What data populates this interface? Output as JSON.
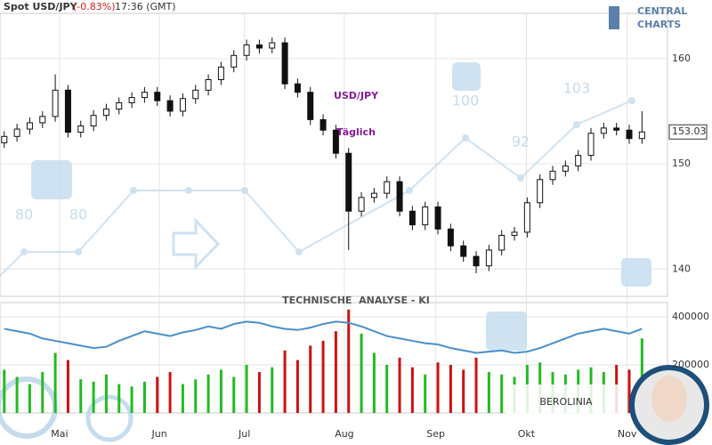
{
  "header": {
    "symbol": "Spot USD/JPY",
    "change": "(-0.83%)",
    "time": "17:36 (GMT)"
  },
  "logo": {
    "line1": "CENTRAL",
    "line2": "CHARTS"
  },
  "overlay": {
    "title": "USD/JPY",
    "subtitle": "Täglich",
    "banner": "TECHNISCHE  ANALYSE - KI",
    "brand": "BEROLINIA",
    "scores": [
      "80",
      "80",
      "100",
      "92",
      "103"
    ]
  },
  "chart_data": [
    {
      "type": "candlestick",
      "x": [
        0,
        3,
        6,
        9,
        12,
        15,
        18,
        21,
        24,
        27,
        30,
        33,
        36,
        39,
        42,
        45,
        48,
        51,
        54,
        57,
        60,
        63,
        66,
        69,
        72,
        75,
        78,
        81,
        84,
        87,
        90,
        93,
        96,
        99,
        102,
        105,
        108,
        111,
        114,
        117,
        120,
        123,
        126,
        129,
        132,
        135,
        138,
        141,
        144,
        147,
        150
      ],
      "open": [
        152.0,
        152.6,
        153.3,
        153.9,
        154.5,
        157.0,
        153.0,
        153.6,
        154.6,
        155.2,
        155.8,
        156.3,
        156.8,
        156.0,
        155.0,
        156.2,
        157.0,
        158.0,
        159.2,
        160.3,
        161.3,
        161.0,
        161.5,
        157.6,
        156.8,
        154.2,
        153.2,
        151.0,
        145.5,
        146.8,
        147.2,
        148.3,
        145.5,
        144.2,
        145.9,
        143.8,
        142.2,
        141.2,
        140.3,
        141.8,
        143.2,
        143.5,
        146.3,
        148.5,
        149.3,
        149.8,
        150.8,
        152.9,
        153.4,
        153.2,
        152.4
      ],
      "high": [
        153.1,
        153.8,
        154.4,
        155.0,
        158.5,
        157.5,
        154.1,
        155.1,
        155.7,
        156.3,
        156.8,
        157.3,
        157.3,
        156.5,
        156.7,
        157.5,
        158.5,
        159.7,
        160.8,
        161.8,
        161.8,
        162.0,
        162.0,
        158.1,
        157.3,
        154.7,
        153.7,
        151.5,
        147.3,
        147.7,
        148.8,
        148.8,
        146.0,
        146.4,
        146.4,
        144.3,
        142.7,
        141.7,
        142.3,
        143.7,
        144.0,
        146.8,
        149.0,
        149.8,
        150.3,
        151.3,
        153.4,
        153.9,
        153.9,
        153.7,
        155.0
      ],
      "low": [
        151.5,
        152.1,
        152.8,
        153.4,
        154.0,
        152.5,
        152.5,
        153.1,
        154.1,
        154.7,
        155.3,
        155.8,
        155.5,
        154.5,
        154.5,
        155.7,
        156.5,
        157.5,
        158.7,
        159.8,
        160.5,
        160.5,
        157.1,
        156.3,
        153.7,
        152.7,
        150.5,
        141.8,
        145.0,
        146.3,
        146.7,
        145.0,
        143.7,
        143.7,
        143.3,
        141.7,
        140.7,
        139.6,
        139.8,
        141.3,
        142.7,
        143.0,
        145.8,
        148.0,
        148.8,
        149.3,
        150.3,
        152.4,
        152.7,
        151.9,
        151.9
      ],
      "close": [
        152.6,
        153.3,
        153.9,
        154.5,
        157.0,
        153.0,
        153.6,
        154.6,
        155.2,
        155.8,
        156.3,
        156.8,
        156.0,
        155.0,
        156.2,
        157.0,
        158.0,
        159.2,
        160.3,
        161.3,
        161.0,
        161.5,
        157.6,
        156.8,
        154.2,
        153.2,
        151.0,
        145.5,
        146.8,
        147.2,
        148.3,
        145.5,
        144.2,
        145.9,
        143.8,
        142.2,
        141.2,
        140.3,
        141.8,
        143.2,
        143.5,
        146.3,
        148.5,
        149.3,
        149.8,
        150.8,
        152.9,
        153.4,
        153.2,
        152.4,
        153.03
      ],
      "xlim": [
        -1,
        156
      ],
      "xticks": [
        {
          "value": 13,
          "label": "Mai"
        },
        {
          "value": 36.5,
          "label": "Jun"
        },
        {
          "value": 56.5,
          "label": "Jul"
        },
        {
          "value": 80,
          "label": "Aug"
        },
        {
          "value": 101.5,
          "label": "Sep"
        },
        {
          "value": 122.8,
          "label": "Okt"
        },
        {
          "value": 146.5,
          "label": "Nov"
        }
      ],
      "ylim": [
        137.4,
        164.3
      ],
      "yticks": [
        140,
        150,
        160
      ],
      "grid": true
    },
    {
      "type": "bar",
      "x": [
        0,
        3,
        6,
        9,
        12,
        15,
        18,
        21,
        24,
        27,
        30,
        33,
        36,
        39,
        42,
        45,
        48,
        51,
        54,
        57,
        60,
        63,
        66,
        69,
        72,
        75,
        78,
        81,
        84,
        87,
        90,
        93,
        96,
        99,
        102,
        105,
        108,
        111,
        114,
        117,
        120,
        123,
        126,
        129,
        132,
        135,
        138,
        141,
        144,
        147,
        150
      ],
      "values": [
        180000,
        150000,
        120000,
        170000,
        250000,
        220000,
        140000,
        130000,
        160000,
        120000,
        110000,
        130000,
        150000,
        170000,
        120000,
        140000,
        160000,
        180000,
        150000,
        200000,
        170000,
        190000,
        260000,
        220000,
        280000,
        300000,
        340000,
        430000,
        330000,
        250000,
        200000,
        230000,
        190000,
        160000,
        210000,
        200000,
        180000,
        230000,
        170000,
        160000,
        150000,
        200000,
        210000,
        170000,
        160000,
        180000,
        190000,
        170000,
        200000,
        180000,
        310000
      ],
      "up_color": "#22bb22",
      "down_color": "#cc1111",
      "average": {
        "color": "#4a90c8",
        "values": [
          350000,
          340000,
          330000,
          310000,
          300000,
          290000,
          280000,
          270000,
          275000,
          300000,
          320000,
          340000,
          330000,
          320000,
          335000,
          345000,
          360000,
          350000,
          370000,
          380000,
          375000,
          360000,
          350000,
          345000,
          355000,
          370000,
          380000,
          375000,
          360000,
          340000,
          320000,
          310000,
          300000,
          290000,
          285000,
          270000,
          260000,
          250000,
          255000,
          260000,
          250000,
          255000,
          270000,
          290000,
          310000,
          330000,
          340000,
          350000,
          340000,
          330000,
          350000
        ]
      },
      "xlim": [
        -1,
        156
      ],
      "ylim": [
        0,
        459000
      ],
      "yticks": [
        200000,
        400000
      ],
      "grid": true
    }
  ]
}
